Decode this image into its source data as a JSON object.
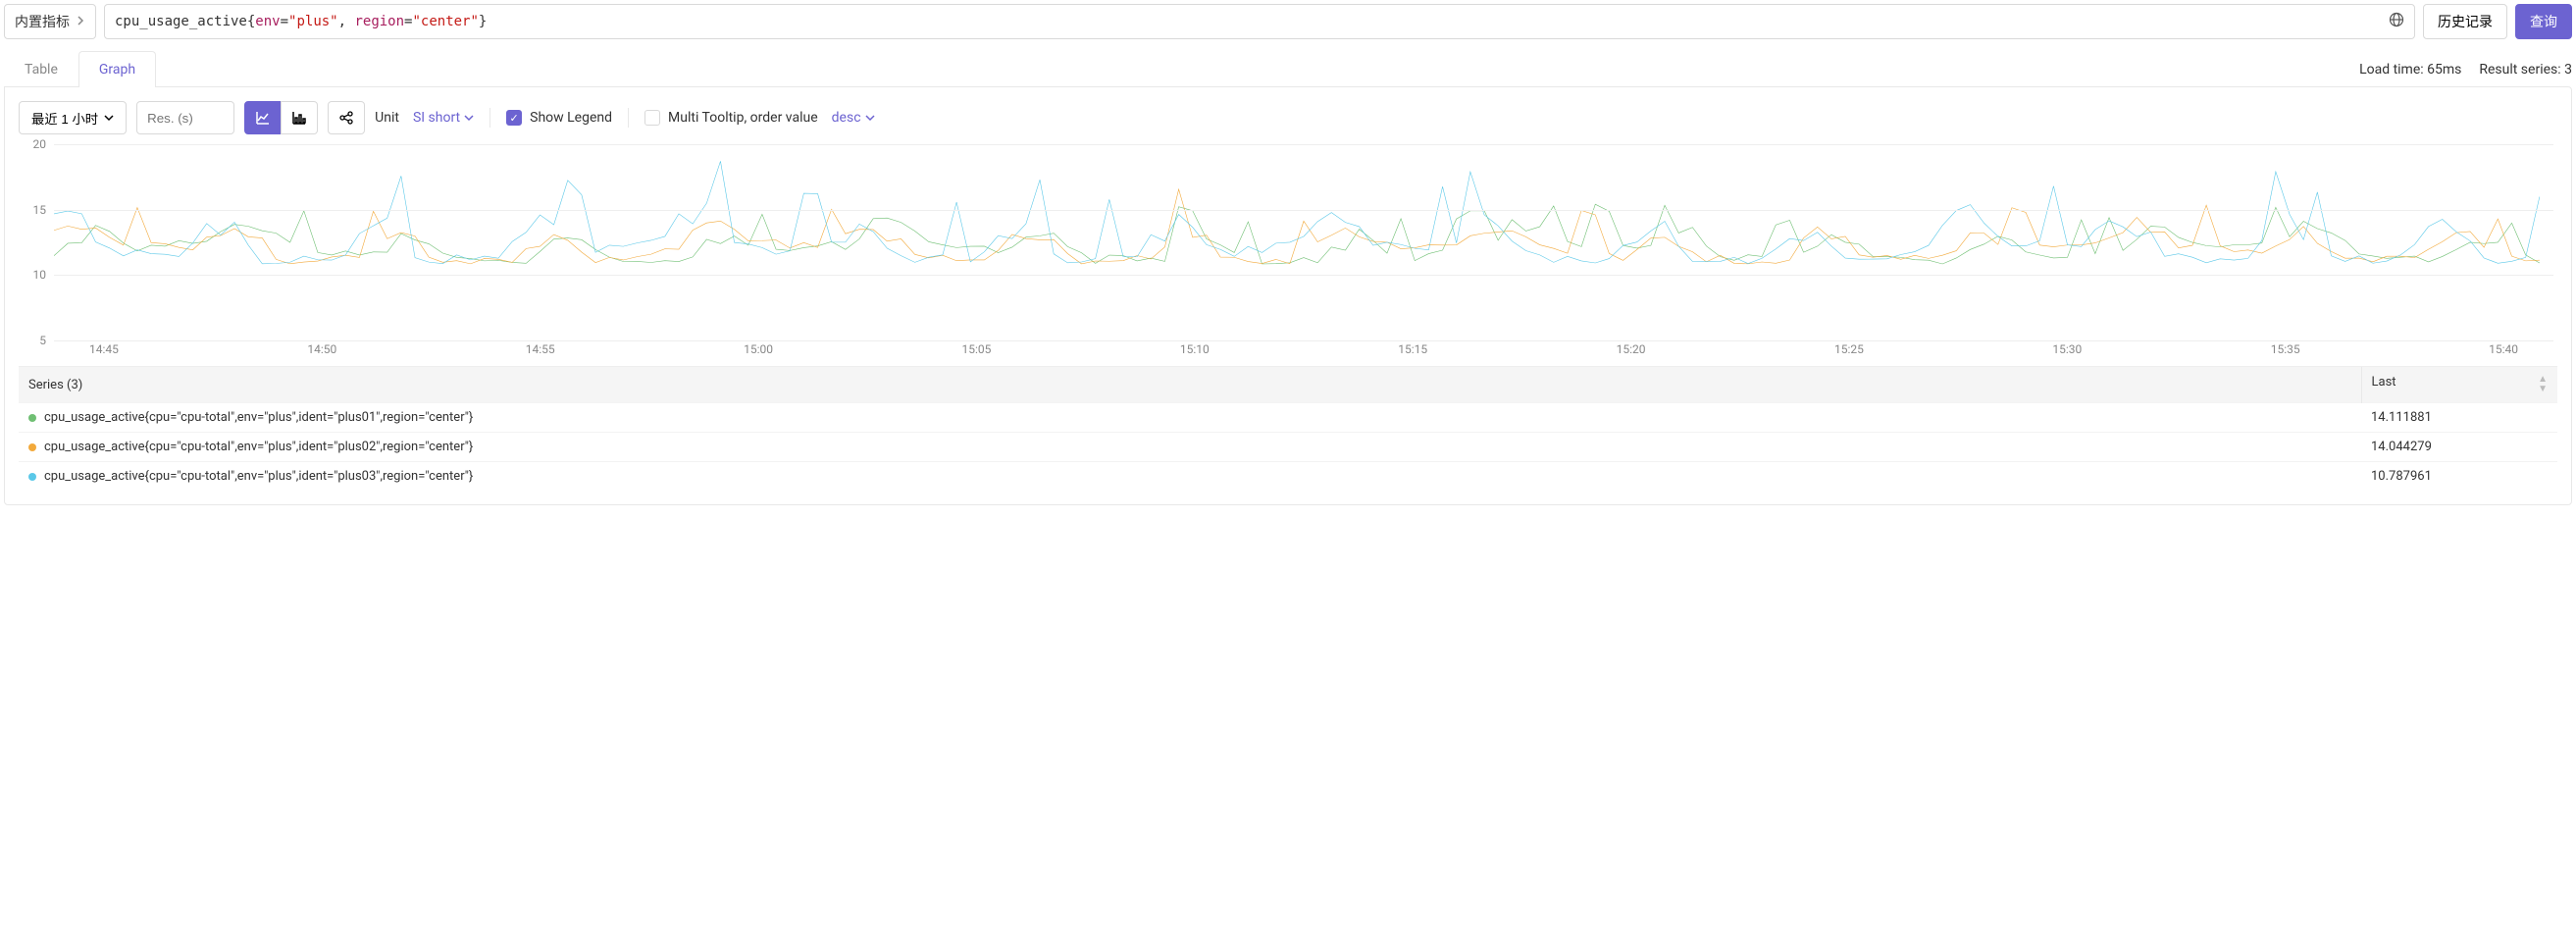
{
  "topbar": {
    "metric_selector_label": "内置指标",
    "query_metric": "cpu_usage_active",
    "query_labels": [
      {
        "key": "env",
        "val": "plus"
      },
      {
        "key": "region",
        "val": "center"
      }
    ],
    "history_label": "历史记录",
    "run_label": "查询"
  },
  "tabs": {
    "table": "Table",
    "graph": "Graph",
    "active": "graph"
  },
  "meta": {
    "load_time_label": "Load time: 65ms",
    "result_series_label": "Result series: 3"
  },
  "toolbar": {
    "time_range": "最近 1 小时",
    "res_placeholder": "Res. (s)",
    "unit_label": "Unit",
    "unit_value": "SI short",
    "show_legend_label": "Show Legend",
    "show_legend_checked": true,
    "multi_tooltip_label": "Multi Tooltip, order value",
    "multi_tooltip_order": "desc",
    "multi_tooltip_checked": false
  },
  "chart": {
    "y_ticks": [
      5,
      10,
      15,
      20
    ],
    "y_min": 5,
    "y_max": 20,
    "x_labels": [
      "14:45",
      "14:50",
      "14:55",
      "15:00",
      "15:05",
      "15:10",
      "15:15",
      "15:20",
      "15:25",
      "15:30",
      "15:35",
      "15:40"
    ],
    "series_colors": [
      "#6fbf73",
      "#f2a93b",
      "#5bc8e8"
    ],
    "n_points": 180,
    "base": 11.2,
    "amp": [
      2.0,
      2.2,
      3.2
    ],
    "noise": 0.7
  },
  "legend": {
    "series_header": "Series (3)",
    "last_header": "Last",
    "rows": [
      {
        "color": "#6fbf73",
        "label": "cpu_usage_active{cpu=\"cpu-total\",env=\"plus\",ident=\"plus01\",region=\"center\"}",
        "last": "14.111881"
      },
      {
        "color": "#f2a93b",
        "label": "cpu_usage_active{cpu=\"cpu-total\",env=\"plus\",ident=\"plus02\",region=\"center\"}",
        "last": "14.044279"
      },
      {
        "color": "#5bc8e8",
        "label": "cpu_usage_active{cpu=\"cpu-total\",env=\"plus\",ident=\"plus03\",region=\"center\"}",
        "last": "10.787961"
      }
    ]
  }
}
